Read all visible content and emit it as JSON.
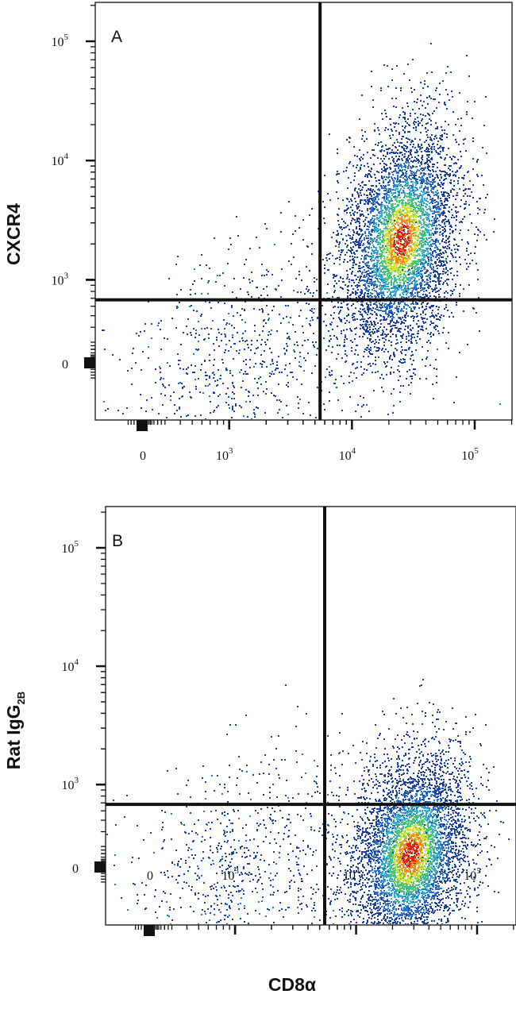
{
  "chart_data": [
    {
      "type": "scatter",
      "panel_label": "A",
      "xlabel": "",
      "ylabel": "CXCR4",
      "x_scale": "biexponential",
      "y_scale": "biexponential",
      "x_ticks": [
        {
          "value": 0,
          "base": "0",
          "exp": ""
        },
        {
          "value": 1000,
          "base": "10",
          "exp": "3"
        },
        {
          "value": 10000,
          "base": "10",
          "exp": "4"
        },
        {
          "value": 100000,
          "base": "10",
          "exp": "5"
        }
      ],
      "y_ticks": [
        {
          "value": 0,
          "base": "0",
          "exp": ""
        },
        {
          "value": 1000,
          "base": "10",
          "exp": "3"
        },
        {
          "value": 10000,
          "base": "10",
          "exp": "4"
        },
        {
          "value": 100000,
          "base": "10",
          "exp": "5"
        }
      ],
      "quadrant_gate": {
        "x": 5500,
        "y": 680
      },
      "populations": [
        {
          "x_center": 25000,
          "y_center": 2200,
          "density": "high"
        },
        {
          "x_center": 1500,
          "y_center": 150,
          "density": "low"
        }
      ],
      "color_scale": [
        "#1a3fa0",
        "#2a6fd0",
        "#2fb0c8",
        "#4cc86a",
        "#d6e030",
        "#f08a1a",
        "#e02010"
      ],
      "grid": false,
      "legend": "none"
    },
    {
      "type": "scatter",
      "panel_label": "B",
      "xlabel": "CD8α",
      "ylabel": "Rat IgG",
      "ylabel_sub": "2B",
      "x_scale": "biexponential",
      "y_scale": "biexponential",
      "x_ticks": [
        {
          "value": 0,
          "base": "0",
          "exp": ""
        },
        {
          "value": 1000,
          "base": "10",
          "exp": "3"
        },
        {
          "value": 10000,
          "base": "10",
          "exp": "4"
        },
        {
          "value": 100000,
          "base": "10",
          "exp": "5"
        }
      ],
      "y_ticks": [
        {
          "value": 0,
          "base": "0",
          "exp": ""
        },
        {
          "value": 1000,
          "base": "10",
          "exp": "3"
        },
        {
          "value": 10000,
          "base": "10",
          "exp": "4"
        },
        {
          "value": 100000,
          "base": "10",
          "exp": "5"
        }
      ],
      "quadrant_gate": {
        "x": 5500,
        "y": 680
      },
      "populations": [
        {
          "x_center": 28000,
          "y_center": 200,
          "density": "high"
        },
        {
          "x_center": 1200,
          "y_center": 60,
          "density": "low"
        }
      ],
      "color_scale": [
        "#1a3fa0",
        "#2a6fd0",
        "#2fb0c8",
        "#4cc86a",
        "#d6e030",
        "#f08a1a",
        "#e02010"
      ],
      "grid": false,
      "legend": "none"
    }
  ]
}
